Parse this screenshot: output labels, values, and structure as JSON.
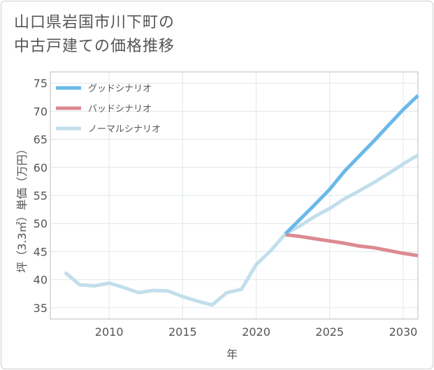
{
  "chart_data": {
    "type": "line",
    "title": [
      "山口県岩国市川下町の",
      "中古戸建ての価格推移"
    ],
    "xlabel": "年",
    "ylabel": "坪（3.3㎡）単価（万円）",
    "xlim": [
      2006,
      2031
    ],
    "ylim": [
      33,
      77
    ],
    "xticks": [
      2010,
      2015,
      2020,
      2025,
      2030
    ],
    "yticks": [
      35,
      40,
      45,
      50,
      55,
      60,
      65,
      70,
      75
    ],
    "grid": true,
    "legend_position": "top-left",
    "series": [
      {
        "name": "グッドシナリオ",
        "color": "#6ab8e8",
        "points": [
          [
            2022,
            48.2
          ],
          [
            2023,
            50.8
          ],
          [
            2024,
            53.4
          ],
          [
            2025,
            56.1
          ],
          [
            2026,
            59.3
          ],
          [
            2027,
            62.0
          ],
          [
            2028,
            64.7
          ],
          [
            2029,
            67.5
          ],
          [
            2030,
            70.3
          ],
          [
            2031,
            72.8
          ]
        ]
      },
      {
        "name": "バッドシナリオ",
        "color": "#dc8a90",
        "points": [
          [
            2022,
            48.0
          ],
          [
            2023,
            47.7
          ],
          [
            2024,
            47.3
          ],
          [
            2025,
            46.9
          ],
          [
            2026,
            46.5
          ],
          [
            2027,
            46.0
          ],
          [
            2028,
            45.7
          ],
          [
            2029,
            45.2
          ],
          [
            2030,
            44.7
          ],
          [
            2031,
            44.3
          ]
        ]
      },
      {
        "name": "ノーマルシナリオ",
        "color": "#c2deec",
        "points": [
          [
            2007,
            41.3
          ],
          [
            2008,
            39.1
          ],
          [
            2009,
            38.9
          ],
          [
            2010,
            39.4
          ],
          [
            2011,
            38.6
          ],
          [
            2012,
            37.7
          ],
          [
            2013,
            38.1
          ],
          [
            2014,
            38.0
          ],
          [
            2015,
            37.0
          ],
          [
            2016,
            36.2
          ],
          [
            2017,
            35.5
          ],
          [
            2018,
            37.7
          ],
          [
            2019,
            38.3
          ],
          [
            2020,
            42.7
          ],
          [
            2021,
            45.2
          ],
          [
            2022,
            48.2
          ],
          [
            2023,
            49.6
          ],
          [
            2024,
            51.3
          ],
          [
            2025,
            52.7
          ],
          [
            2026,
            54.4
          ],
          [
            2027,
            55.8
          ],
          [
            2028,
            57.3
          ],
          [
            2029,
            58.9
          ],
          [
            2030,
            60.6
          ],
          [
            2031,
            62.2
          ]
        ]
      }
    ]
  }
}
